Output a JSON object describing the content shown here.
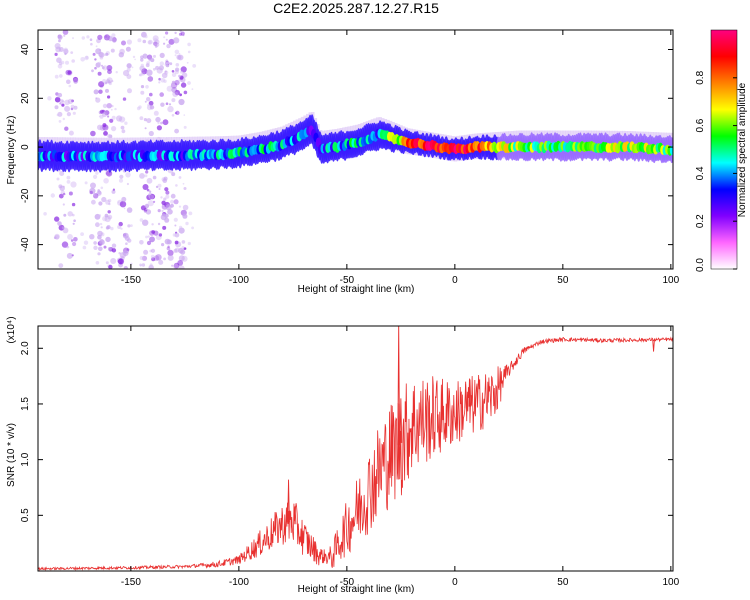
{
  "chart_data": [
    {
      "id": "spectrogram",
      "type": "heatmap",
      "title": "C2E2.2025.287.12.27.R15",
      "xlabel": "Height of straight line (km)",
      "ylabel": "Frequency (Hz)",
      "xlim": [
        -193,
        101
      ],
      "ylim": [
        -50,
        48
      ],
      "xticks": [
        -150,
        -100,
        -50,
        0,
        50,
        100
      ],
      "yticks": [
        -40,
        -20,
        0,
        20,
        40
      ],
      "ridge": [
        {
          "x": -193,
          "y": -3.5,
          "a": 0.35
        },
        {
          "x": -160,
          "y": -3.8,
          "a": 0.35
        },
        {
          "x": -130,
          "y": -3.5,
          "a": 0.35
        },
        {
          "x": -110,
          "y": -3,
          "a": 0.4
        },
        {
          "x": -100,
          "y": -2.5,
          "a": 0.45
        },
        {
          "x": -90,
          "y": -1,
          "a": 0.45
        },
        {
          "x": -80,
          "y": 1,
          "a": 0.4
        },
        {
          "x": -70,
          "y": 5,
          "a": 0.35
        },
        {
          "x": -66,
          "y": 7,
          "a": 0.3
        },
        {
          "x": -62,
          "y": -1,
          "a": 0.35
        },
        {
          "x": -55,
          "y": 0,
          "a": 0.4
        },
        {
          "x": -45,
          "y": 2,
          "a": 0.45
        },
        {
          "x": -35,
          "y": 5,
          "a": 0.4
        },
        {
          "x": -30,
          "y": 4,
          "a": 0.55
        },
        {
          "x": -22,
          "y": 2,
          "a": 0.8
        },
        {
          "x": -10,
          "y": 0.5,
          "a": 0.9
        },
        {
          "x": 0,
          "y": -1,
          "a": 0.9
        },
        {
          "x": 10,
          "y": 0,
          "a": 0.85
        },
        {
          "x": 30,
          "y": 0,
          "a": 0.55
        },
        {
          "x": 60,
          "y": 0,
          "a": 0.55
        },
        {
          "x": 80,
          "y": 0,
          "a": 0.6
        },
        {
          "x": 101,
          "y": -1,
          "a": 0.55
        }
      ],
      "colorbar": {
        "label": "Normalized spectral amplitude",
        "range": [
          0,
          1
        ],
        "ticks": [
          "0.0",
          "0.2",
          "0.4",
          "0.6",
          "0.8"
        ],
        "tick_values": [
          0,
          0.2,
          0.4,
          0.6,
          0.8
        ],
        "colors": [
          "#ffffff",
          "#ff66ff",
          "#8000ff",
          "#0000ff",
          "#00ffff",
          "#00ff00",
          "#ffff00",
          "#ff8000",
          "#ff0000",
          "#ff0080"
        ]
      }
    },
    {
      "id": "snr",
      "type": "line",
      "xlabel": "Height of straight line (km)",
      "ylabel": "SNR (10 * v/v)",
      "exponent_label": "(x10⁴)",
      "xlim": [
        -193,
        101
      ],
      "ylim": [
        0,
        2.2
      ],
      "xticks": [
        -150,
        -100,
        -50,
        0,
        50,
        100
      ],
      "yticks": [
        0.5,
        1.0,
        1.5,
        2.0
      ],
      "ytick_labels": [
        "0.5",
        "1.0",
        "1.5",
        "2.0"
      ],
      "color": "#e8302f",
      "envelope": [
        {
          "x": -193,
          "y": 0.02
        },
        {
          "x": -150,
          "y": 0.03
        },
        {
          "x": -125,
          "y": 0.04
        },
        {
          "x": -110,
          "y": 0.06
        },
        {
          "x": -100,
          "y": 0.1
        },
        {
          "x": -90,
          "y": 0.25
        },
        {
          "x": -80,
          "y": 0.42
        },
        {
          "x": -75,
          "y": 0.45
        },
        {
          "x": -70,
          "y": 0.3
        },
        {
          "x": -63,
          "y": 0.14
        },
        {
          "x": -57,
          "y": 0.12
        },
        {
          "x": -52,
          "y": 0.32
        },
        {
          "x": -45,
          "y": 0.55
        },
        {
          "x": -40,
          "y": 0.72
        },
        {
          "x": -35,
          "y": 0.9
        },
        {
          "x": -30,
          "y": 1.05
        },
        {
          "x": -25,
          "y": 1.15
        },
        {
          "x": -20,
          "y": 1.32
        },
        {
          "x": -10,
          "y": 1.38
        },
        {
          "x": 0,
          "y": 1.42
        },
        {
          "x": 10,
          "y": 1.5
        },
        {
          "x": 18,
          "y": 1.58
        },
        {
          "x": 25,
          "y": 1.8
        },
        {
          "x": 32,
          "y": 1.98
        },
        {
          "x": 40,
          "y": 2.06
        },
        {
          "x": 50,
          "y": 2.08
        },
        {
          "x": 70,
          "y": 2.07
        },
        {
          "x": 101,
          "y": 2.08
        }
      ],
      "noise": [
        {
          "x": -193,
          "a": 0.01
        },
        {
          "x": -120,
          "a": 0.015
        },
        {
          "x": -100,
          "a": 0.04
        },
        {
          "x": -90,
          "a": 0.12
        },
        {
          "x": -75,
          "a": 0.22
        },
        {
          "x": -60,
          "a": 0.06
        },
        {
          "x": -50,
          "a": 0.25
        },
        {
          "x": -35,
          "a": 0.45
        },
        {
          "x": -25,
          "a": 0.5
        },
        {
          "x": 0,
          "a": 0.3
        },
        {
          "x": 18,
          "a": 0.25
        },
        {
          "x": 25,
          "a": 0.06
        },
        {
          "x": 35,
          "a": 0.02
        },
        {
          "x": 101,
          "a": 0.015
        }
      ],
      "spikes": [
        {
          "x": -77,
          "y": 0.82
        },
        {
          "x": -74,
          "y": 0.58
        },
        {
          "x": -26,
          "y": 2.22
        },
        {
          "x": -25,
          "y": 1.55
        },
        {
          "x": 7,
          "y": 1.72
        },
        {
          "x": 5,
          "y": 1.7
        },
        {
          "x": 92,
          "y": 1.97
        }
      ]
    }
  ]
}
